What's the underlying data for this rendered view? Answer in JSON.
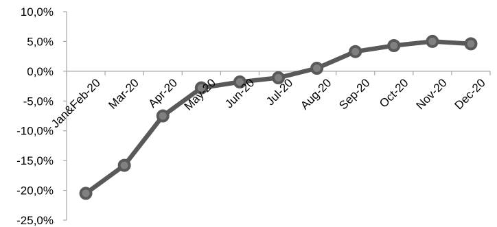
{
  "chart_data": {
    "type": "line",
    "categories": [
      "Jan&Feb-20",
      "Mar-20",
      "Apr-20",
      "May-20",
      "Jun-20",
      "Jul-20",
      "Aug-20",
      "Sep-20",
      "Oct-20",
      "Nov-20",
      "Dec-20"
    ],
    "series": [
      {
        "values": [
          -20.5,
          -15.8,
          -7.5,
          -2.8,
          -1.8,
          -1.1,
          0.5,
          3.3,
          4.3,
          5.0,
          4.6
        ]
      }
    ],
    "ylim": [
      -25,
      10
    ],
    "yticks": [
      10,
      5,
      0,
      -5,
      -10,
      -15,
      -20,
      -25
    ],
    "ytick_labels": [
      "10,0%",
      "5,0%",
      "0,0%",
      "-5,0%",
      "-10,0%",
      "-15,0%",
      "-20,0%",
      "-25,0%"
    ],
    "title": "",
    "xlabel": "",
    "ylabel": "",
    "grid": false,
    "legend": "none",
    "line_color": "#595959",
    "marker_fill": "#808080",
    "axis_color": "#a6a6a6"
  }
}
